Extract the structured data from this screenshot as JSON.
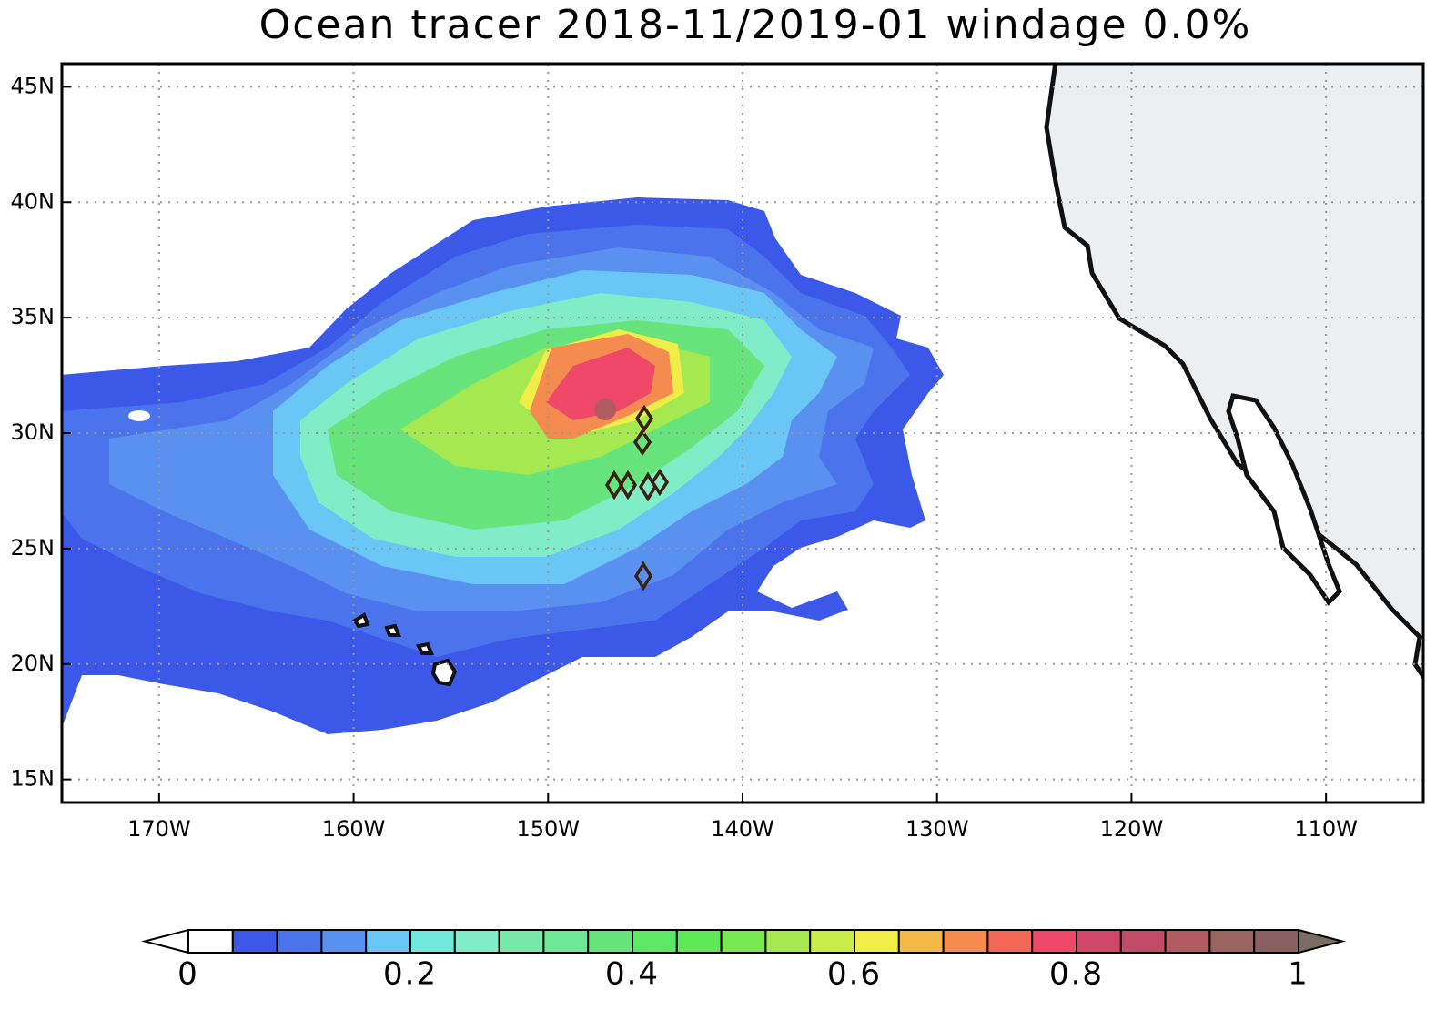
{
  "map": {
    "title": "Ocean tracer 2018-11/2019-01 windage 0.0%",
    "xlim": [
      -175,
      -105
    ],
    "ylim": [
      14,
      46
    ],
    "xticks": [
      {
        "value": -170,
        "label": "170W"
      },
      {
        "value": -160,
        "label": "160W"
      },
      {
        "value": -150,
        "label": "150W"
      },
      {
        "value": -140,
        "label": "140W"
      },
      {
        "value": -130,
        "label": "130W"
      },
      {
        "value": -120,
        "label": "120W"
      },
      {
        "value": -110,
        "label": "110W"
      }
    ],
    "yticks": [
      {
        "value": 15,
        "label": "15N"
      },
      {
        "value": 20,
        "label": "20N"
      },
      {
        "value": 25,
        "label": "25N"
      },
      {
        "value": 30,
        "label": "30N"
      },
      {
        "value": 35,
        "label": "35N"
      },
      {
        "value": 40,
        "label": "40N"
      },
      {
        "value": 45,
        "label": "45N"
      }
    ],
    "grid": true,
    "colorbar": {
      "range": [
        0,
        1
      ],
      "ticks": [
        0,
        0.2,
        0.4,
        0.6,
        0.8,
        1
      ],
      "under_color": "#ffffff",
      "over_color": "#7a6c60",
      "colors": [
        "#ffffff",
        "#3c58e8",
        "#4a73ec",
        "#5a90f0",
        "#6ac6f4",
        "#70e8dc",
        "#80ecc8",
        "#78e8a8",
        "#6ee896",
        "#68e47c",
        "#5ee868",
        "#5ee85a",
        "#7ae855",
        "#a6e850",
        "#c8ec48",
        "#f0ec48",
        "#f4b848",
        "#f48c50",
        "#f46858",
        "#f04868",
        "#d04868",
        "#c04c68",
        "#b05c60",
        "#9a6460",
        "#8a6060"
      ]
    }
  }
}
